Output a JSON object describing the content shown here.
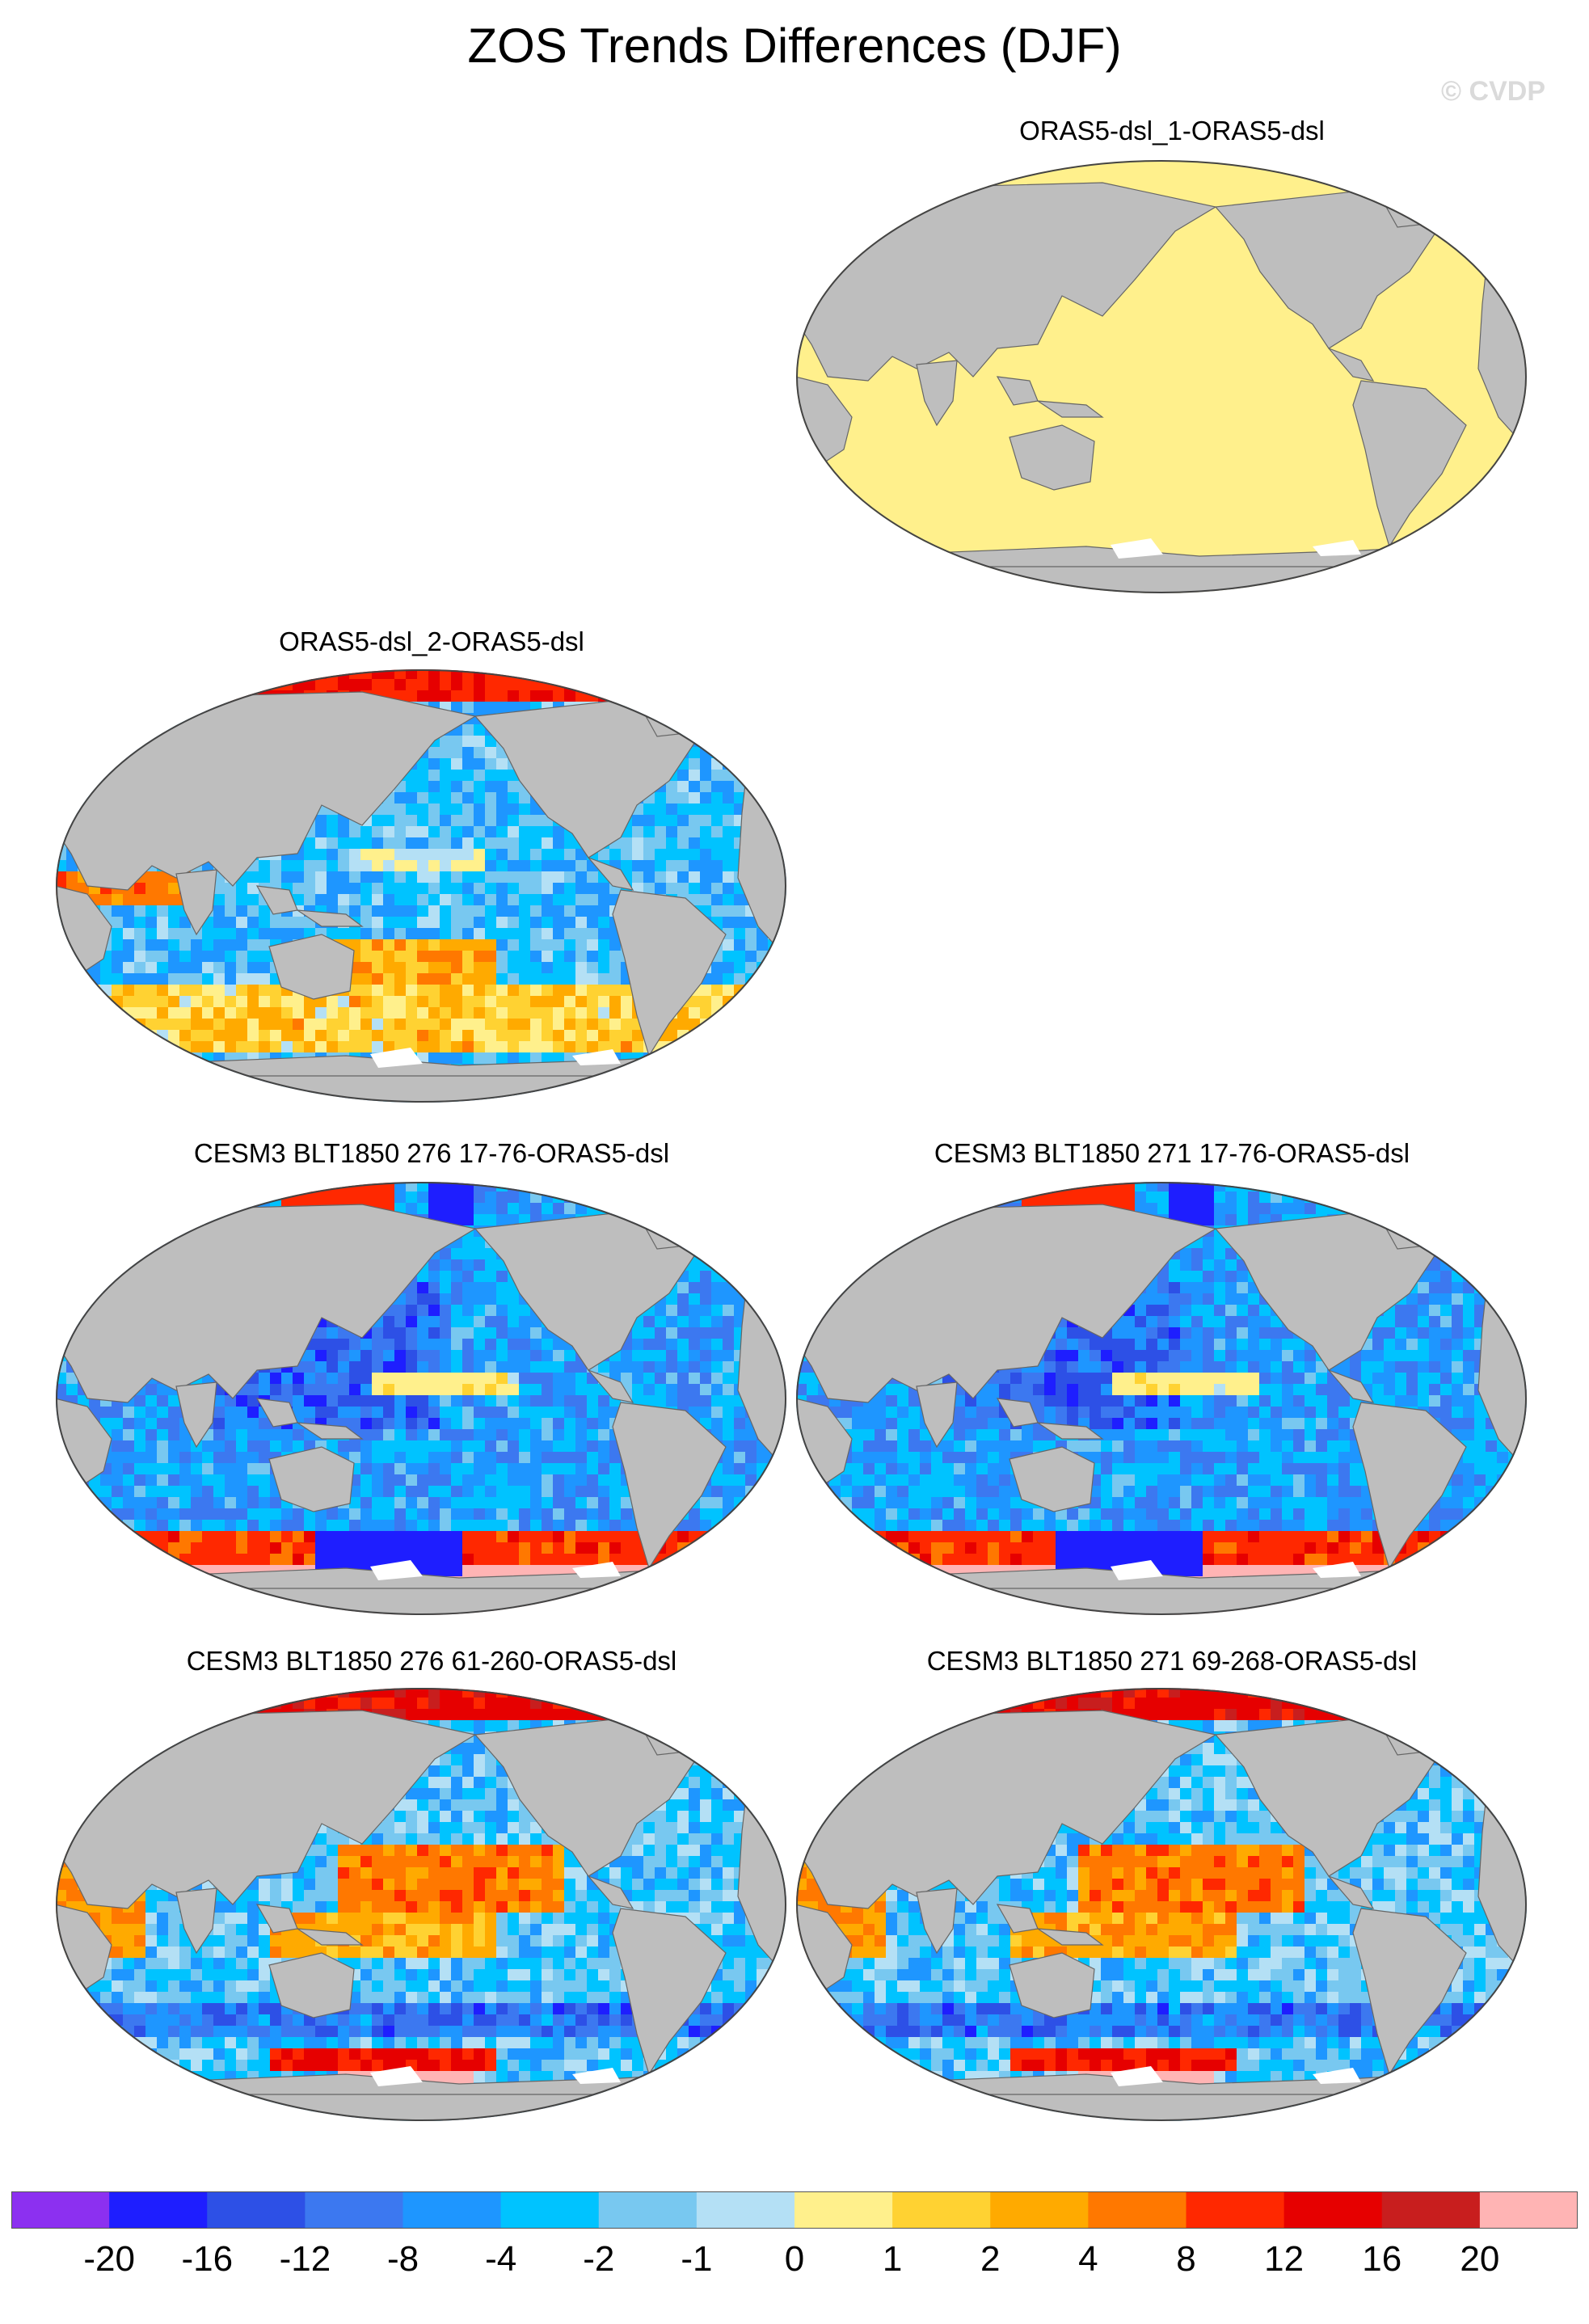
{
  "title": "ZOS Trends Differences (DJF)",
  "watermark": "© CVDP",
  "panels": [
    {
      "title": "ORAS5-dsl_1-ORAS5-dsl",
      "pattern": "uniform-light-yellow"
    },
    {
      "title": "ORAS5-dsl_2-ORAS5-dsl",
      "pattern": "mixed-blue-with-orange-southern-ocean"
    },
    {
      "title": "CESM3 BLT1850 276 17-76-ORAS5-dsl",
      "pattern": "mostly-blue-pink-antarctic"
    },
    {
      "title": "CESM3 BLT1850 271 17-76-ORAS5-dsl",
      "pattern": "mostly-blue-pink-antarctic"
    },
    {
      "title": "CESM3 BLT1850 276 61-260-ORAS5-dsl",
      "pattern": "mixed-orange-tropical-pacific"
    },
    {
      "title": "CESM3 BLT1850 271 69-268-ORAS5-dsl",
      "pattern": "mixed-orange-tropical-pacific"
    }
  ],
  "colorbar": {
    "colors": [
      "#8c30f0",
      "#1e1eff",
      "#2d50e6",
      "#3c78f0",
      "#1e96ff",
      "#00c3ff",
      "#78c8f0",
      "#b4e0f5",
      "#fff08c",
      "#ffd232",
      "#ffaa00",
      "#ff7800",
      "#ff2800",
      "#e60000",
      "#c81e1e",
      "#ffb4b4"
    ],
    "labels": [
      "-20",
      "-16",
      "-12",
      "-8",
      "-4",
      "-2",
      "-1",
      "0",
      "1",
      "2",
      "4",
      "8",
      "12",
      "16",
      "20"
    ]
  },
  "colors": {
    "land": "#bebebe",
    "outline": "#444444"
  }
}
